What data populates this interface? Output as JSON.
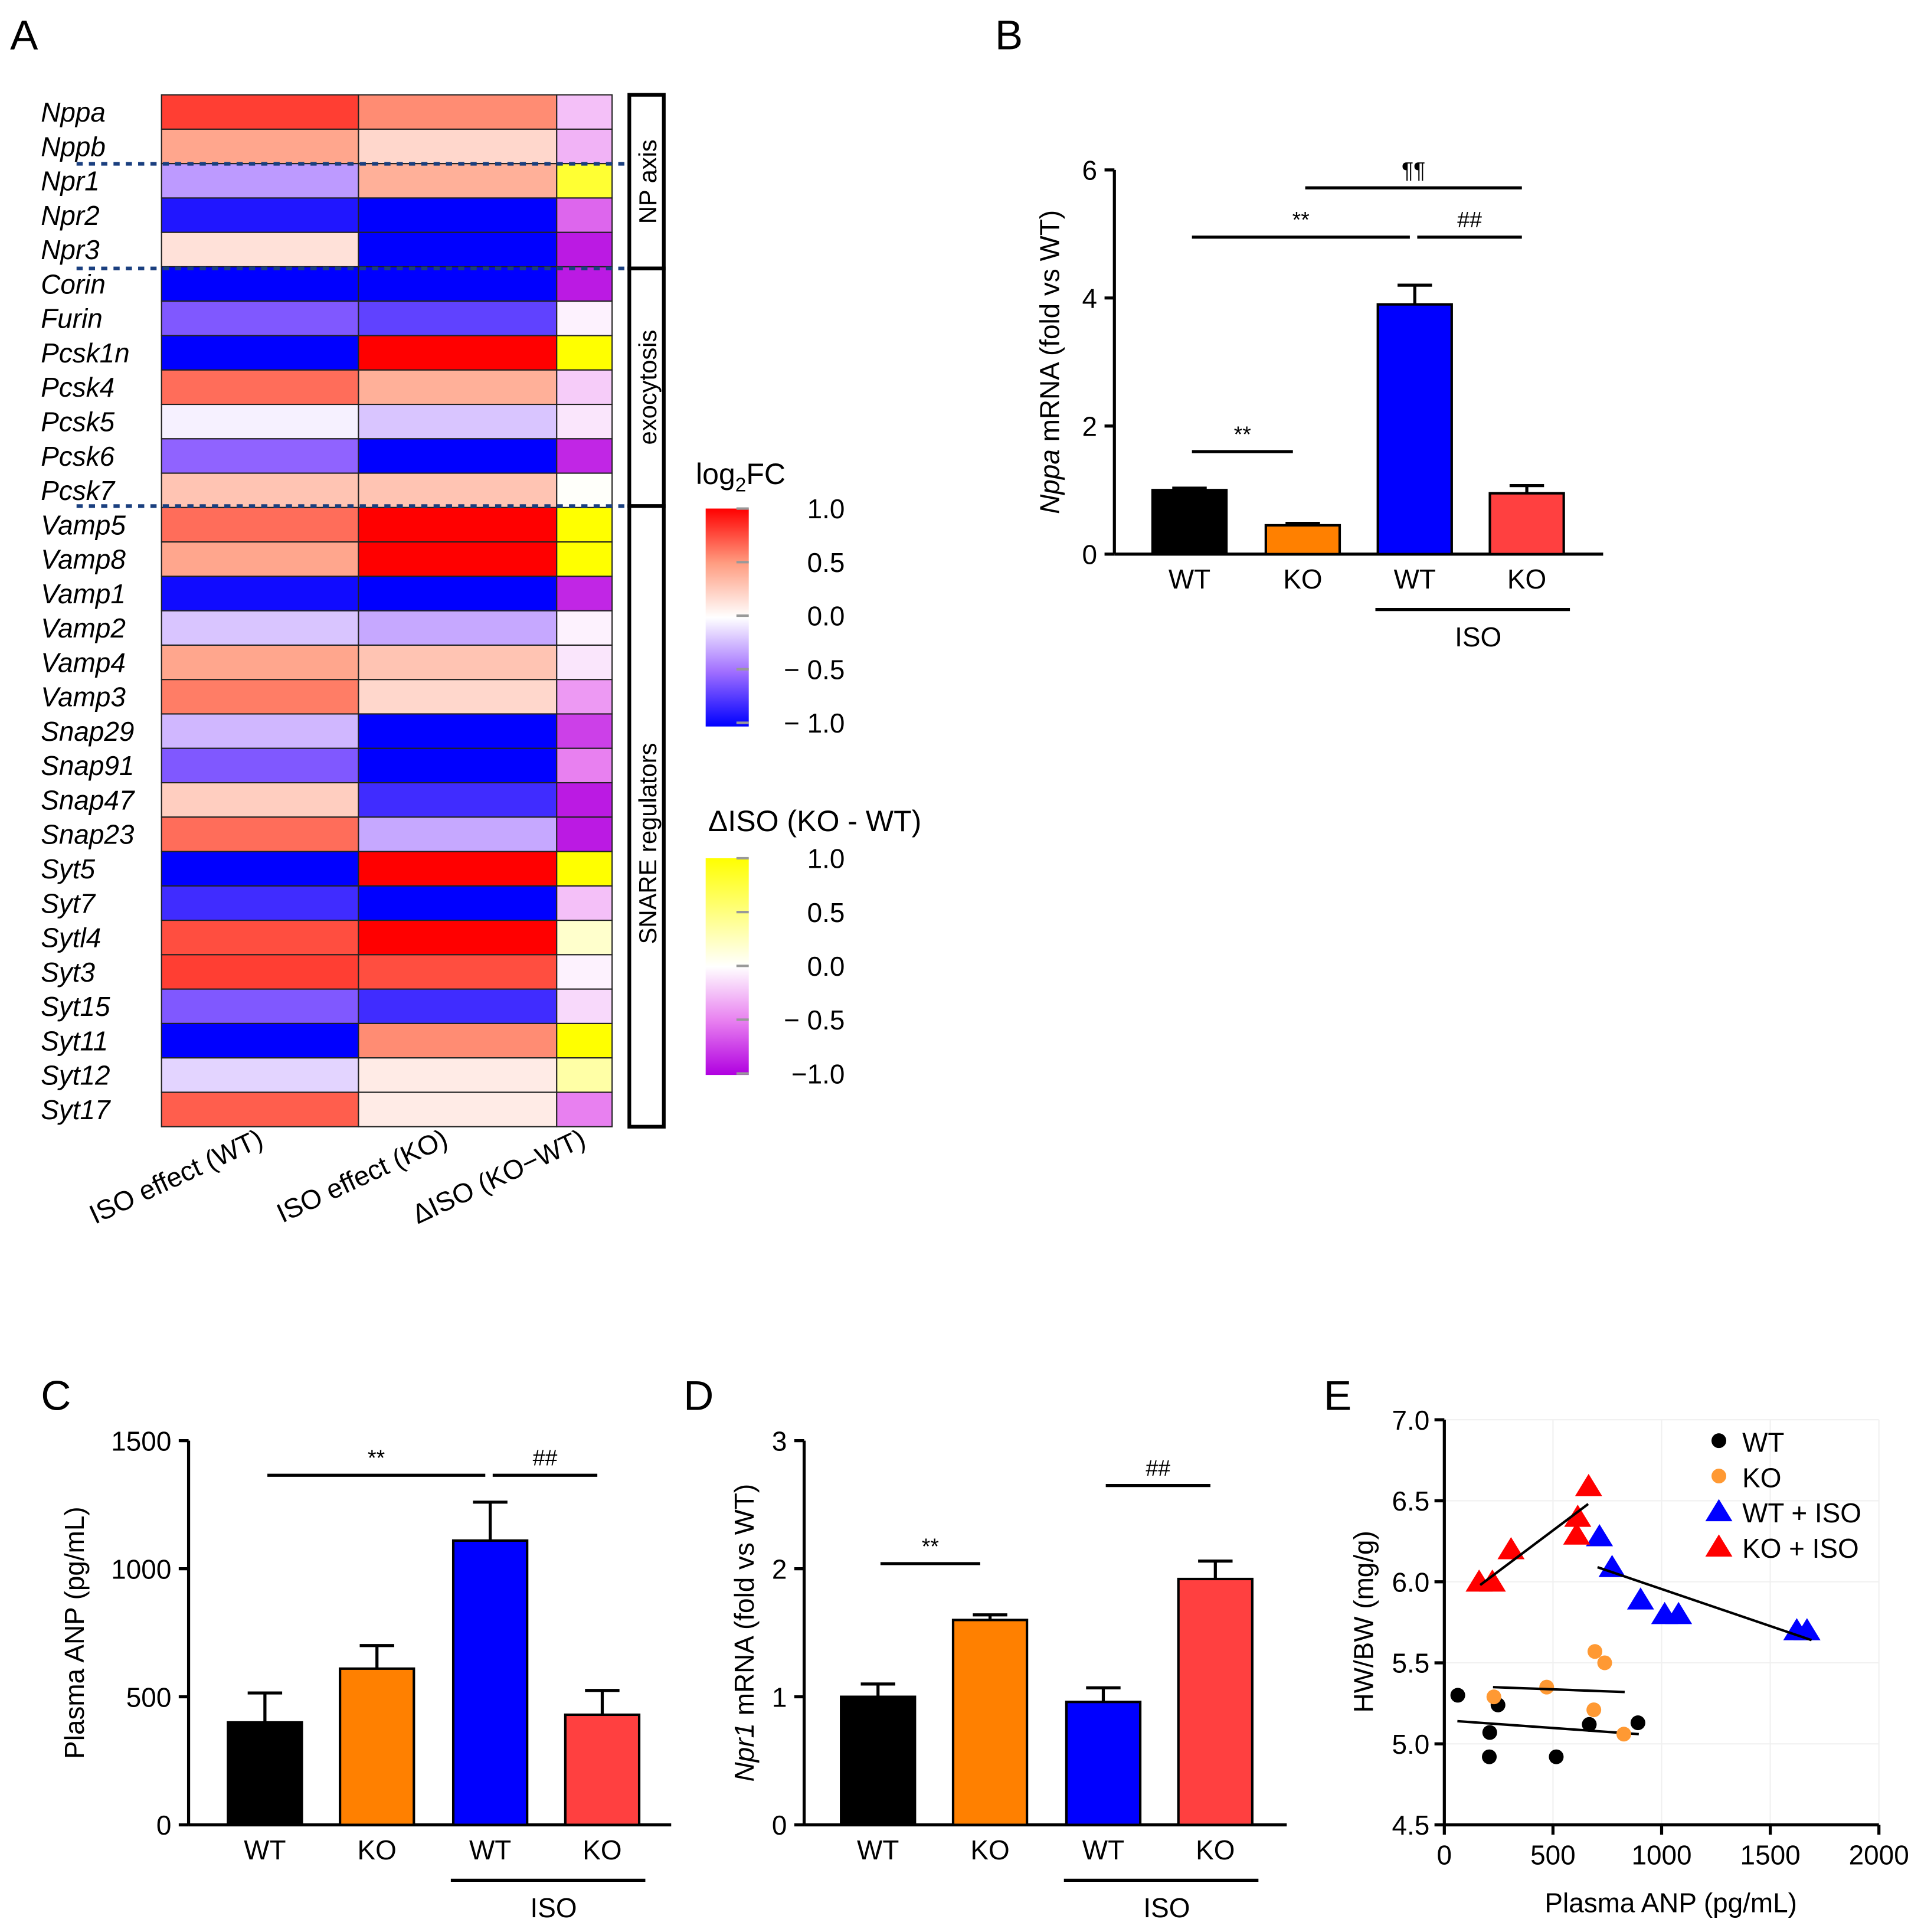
{
  "panel_letters": {
    "a": "A",
    "b": "B",
    "c": "C",
    "d": "D",
    "e": "E"
  },
  "chart_data": [
    {
      "id": "A",
      "type": "heatmap",
      "genes": [
        "Nppa",
        "Nppb",
        "Npr1",
        "Npr2",
        "Npr3",
        "Corin",
        "Furin",
        "Pcsk1n",
        "Pcsk4",
        "Pcsk5",
        "Pcsk6",
        "Pcsk7",
        "Vamp5",
        "Vamp8",
        "Vamp1",
        "Vamp2",
        "Vamp4",
        "Vamp3",
        "Snap29",
        "Snap91",
        "Snap47",
        "Snap23",
        "Syt5",
        "Syt7",
        "Sytl4",
        "Syt3",
        "Syt15",
        "Syt11",
        "Syt12",
        "Syt17"
      ],
      "columns": [
        "ISO effect (WT)",
        "ISO effect (KO)",
        "ΔISO (KO−WT)"
      ],
      "values": [
        [
          0.8,
          0.55,
          -0.25
        ],
        [
          0.45,
          0.2,
          -0.3
        ],
        [
          -0.35,
          0.4,
          0.8
        ],
        [
          -0.9,
          -1,
          -0.6
        ],
        [
          0.15,
          -1,
          -0.9
        ],
        [
          -1,
          -1,
          -0.9
        ],
        [
          -0.6,
          -0.7,
          -0.05
        ],
        [
          -1,
          1,
          1
        ],
        [
          0.65,
          0.4,
          -0.2
        ],
        [
          -0.05,
          -0.2,
          -0.1
        ],
        [
          -0.55,
          -1,
          -0.85
        ],
        [
          0.3,
          0.3,
          0.02
        ],
        [
          0.65,
          1,
          1
        ],
        [
          0.45,
          1,
          1
        ],
        [
          -0.95,
          -1,
          -0.85
        ],
        [
          -0.2,
          -0.3,
          -0.05
        ],
        [
          0.45,
          0.3,
          -0.1
        ],
        [
          0.6,
          0.2,
          -0.4
        ],
        [
          -0.25,
          -1,
          -0.75
        ],
        [
          -0.6,
          -1,
          -0.5
        ],
        [
          0.25,
          -0.8,
          -0.9
        ],
        [
          0.65,
          -0.3,
          -0.9
        ],
        [
          -1,
          1,
          1
        ],
        [
          -0.8,
          -1,
          -0.25
        ],
        [
          0.75,
          1,
          0.2
        ],
        [
          0.8,
          0.75,
          -0.05
        ],
        [
          -0.6,
          -0.8,
          -0.15
        ],
        [
          -1,
          0.55,
          1
        ],
        [
          -0.15,
          0.1,
          0.35
        ],
        [
          0.7,
          0.1,
          -0.5
        ]
      ],
      "groups": [
        "NP axis",
        "exocytosis",
        "SNARE regulators"
      ],
      "legend_log2fc": {
        "title_main": "log",
        "title_sub": "2",
        "title_end": "FC",
        "ticks": [
          "1.0",
          "0.5",
          "0.0",
          "− 0.5",
          "− 1.0"
        ],
        "range": [
          -1,
          1
        ]
      },
      "legend_delta": {
        "title": "ΔISO (KO - WT)",
        "ticks": [
          "1.0",
          "0.5",
          "0.0",
          "− 0.5",
          "−1.0"
        ],
        "range": [
          -1,
          1
        ]
      },
      "colors": {
        "pos": "#ff0000",
        "neg": "#0000ff",
        "delta_pos": "#ffff00",
        "delta_neg": "#b000e0"
      }
    },
    {
      "id": "B",
      "type": "bar",
      "categories": [
        "WT",
        "KO",
        "WT",
        "KO"
      ],
      "values": [
        1.0,
        0.45,
        3.9,
        0.95
      ],
      "errors": [
        0.03,
        0.03,
        0.3,
        0.12
      ],
      "colors": [
        "#000000",
        "#ff8000",
        "#0000ff",
        "#ff4040"
      ],
      "ylabel_italic": "Nppa",
      "ylabel": " mRNA (fold vs WT)",
      "ylim": [
        0,
        6
      ],
      "yticks": [
        "0",
        "2",
        "4",
        "6"
      ],
      "group_label": "ISO",
      "annotations": [
        {
          "text": "**",
          "from": 0,
          "to": 1,
          "level": 1.6
        },
        {
          "text": "**",
          "from": 0,
          "to": 2,
          "level": 4.95
        },
        {
          "text": "##",
          "from": 2,
          "to": 3,
          "level": 4.95
        },
        {
          "text": "¶¶",
          "from": 1,
          "to": 3,
          "level": 5.72
        }
      ]
    },
    {
      "id": "C",
      "type": "bar",
      "categories": [
        "WT",
        "KO",
        "WT",
        "KO"
      ],
      "values": [
        400,
        610,
        1110,
        430
      ],
      "errors": [
        115,
        90,
        150,
        95
      ],
      "colors": [
        "#000000",
        "#ff8000",
        "#0000ff",
        "#ff4040"
      ],
      "ylabel_italic": "",
      "ylabel": "Plasma ANP (pg/mL)",
      "ylim": [
        0,
        1500
      ],
      "yticks": [
        "0",
        "500",
        "1000",
        "1500"
      ],
      "group_label": "ISO",
      "annotations": [
        {
          "text": "**",
          "from": 0,
          "to": 2,
          "level": 1365
        },
        {
          "text": "##",
          "from": 2,
          "to": 3,
          "level": 1365
        }
      ]
    },
    {
      "id": "D",
      "type": "bar",
      "categories": [
        "WT",
        "KO",
        "WT",
        "KO"
      ],
      "values": [
        1.0,
        1.6,
        0.96,
        1.92
      ],
      "errors": [
        0.1,
        0.04,
        0.11,
        0.14
      ],
      "colors": [
        "#000000",
        "#ff8000",
        "#0000ff",
        "#ff4040"
      ],
      "ylabel_italic": "Npr1",
      "ylabel": " mRNA (fold vs WT)",
      "ylim": [
        0,
        3
      ],
      "yticks": [
        "0",
        "1",
        "2",
        "3"
      ],
      "group_label": "ISO",
      "annotations": [
        {
          "text": "**",
          "from": 0,
          "to": 1,
          "level": 2.04
        },
        {
          "text": "##",
          "from": 2,
          "to": 3,
          "level": 2.65
        }
      ]
    },
    {
      "id": "E",
      "type": "scatter",
      "xlabel": "Plasma ANP (pg/mL)",
      "ylabel": "HW/BW (mg/g)",
      "xlim": [
        0,
        2000
      ],
      "ylim": [
        4.5,
        7.0
      ],
      "xticks": [
        "0",
        "500",
        "1000",
        "1500",
        "2000"
      ],
      "yticks": [
        "4.5",
        "5.0",
        "5.5",
        "6.0",
        "6.5",
        "7.0"
      ],
      "grid": true,
      "legend_position": "top-right",
      "series": [
        {
          "name": "WT",
          "marker": "circle",
          "color": "#000000",
          "points": [
            [
              62,
              5.3
            ],
            [
              247,
              5.24
            ],
            [
              209,
              5.07
            ],
            [
              207,
              4.92
            ],
            [
              515,
              4.92
            ],
            [
              667,
              5.12
            ],
            [
              891,
              5.13
            ]
          ],
          "trend": [
            [
              60,
              5.14
            ],
            [
              895,
              5.06
            ]
          ]
        },
        {
          "name": "KO",
          "marker": "circle",
          "color": "#ff9933",
          "points": [
            [
              228,
              5.29
            ],
            [
              471,
              5.35
            ],
            [
              693,
              5.57
            ],
            [
              738,
              5.5
            ],
            [
              688,
              5.21
            ],
            [
              826,
              5.06
            ]
          ],
          "trend": [
            [
              224,
              5.35
            ],
            [
              830,
              5.32
            ]
          ]
        },
        {
          "name": "WT + ISO",
          "marker": "triangle",
          "color": "#0000ff",
          "points": [
            [
              714,
              6.28
            ],
            [
              772,
              6.09
            ],
            [
              903,
              5.89
            ],
            [
              1014,
              5.8
            ],
            [
              1078,
              5.8
            ],
            [
              1622,
              5.7
            ],
            [
              1669,
              5.7
            ]
          ],
          "trend": [
            [
              705,
              6.09
            ],
            [
              1690,
              5.64
            ]
          ]
        },
        {
          "name": "KO + ISO",
          "marker": "triangle",
          "color": "#ff0000",
          "points": [
            [
              160,
              6.0
            ],
            [
              221,
              6.0
            ],
            [
              307,
              6.2
            ],
            [
              664,
              6.59
            ],
            [
              614,
              6.4
            ],
            [
              609,
              6.29
            ]
          ],
          "trend": [
            [
              165,
              5.98
            ],
            [
              662,
              6.48
            ]
          ]
        }
      ]
    }
  ]
}
